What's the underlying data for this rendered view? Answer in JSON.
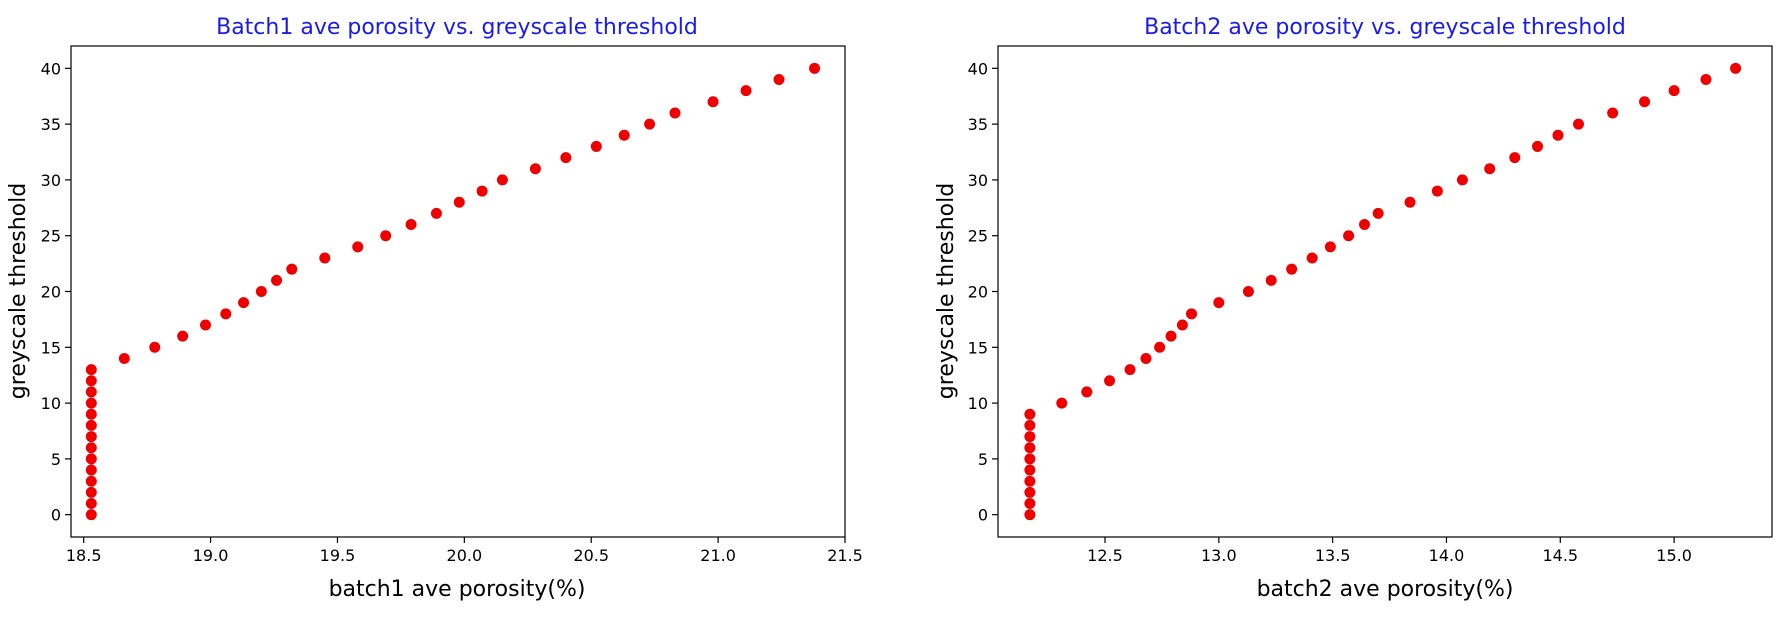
{
  "colors": {
    "title": "#1a1aee",
    "marker": "#ee0000"
  },
  "chart_data": [
    {
      "type": "scatter",
      "title": "Batch1 ave porosity vs. greyscale threshold",
      "xlabel": "batch1 ave porosity(%)",
      "ylabel": "greyscale threshold",
      "xlim": [
        18.45,
        21.5
      ],
      "ylim": [
        -2,
        42
      ],
      "xticks": [
        18.5,
        19.0,
        19.5,
        20.0,
        20.5,
        21.0,
        21.5
      ],
      "xtick_labels": [
        "18.5",
        "19.0",
        "19.5",
        "20.0",
        "20.5",
        "21.0",
        "21.5"
      ],
      "yticks": [
        0,
        5,
        10,
        15,
        20,
        25,
        30,
        35,
        40
      ],
      "ytick_labels": [
        "0",
        "5",
        "10",
        "15",
        "20",
        "25",
        "30",
        "35",
        "40"
      ],
      "grid": false,
      "points": [
        [
          18.53,
          0
        ],
        [
          18.53,
          1
        ],
        [
          18.53,
          2
        ],
        [
          18.53,
          3
        ],
        [
          18.53,
          4
        ],
        [
          18.53,
          5
        ],
        [
          18.53,
          6
        ],
        [
          18.53,
          7
        ],
        [
          18.53,
          8
        ],
        [
          18.53,
          9
        ],
        [
          18.53,
          10
        ],
        [
          18.53,
          11
        ],
        [
          18.53,
          12
        ],
        [
          18.53,
          13
        ],
        [
          18.66,
          14
        ],
        [
          18.78,
          15
        ],
        [
          18.89,
          16
        ],
        [
          18.98,
          17
        ],
        [
          19.06,
          18
        ],
        [
          19.13,
          19
        ],
        [
          19.2,
          20
        ],
        [
          19.26,
          21
        ],
        [
          19.32,
          22
        ],
        [
          19.45,
          23
        ],
        [
          19.58,
          24
        ],
        [
          19.69,
          25
        ],
        [
          19.79,
          26
        ],
        [
          19.89,
          27
        ],
        [
          19.98,
          28
        ],
        [
          20.07,
          29
        ],
        [
          20.15,
          30
        ],
        [
          20.28,
          31
        ],
        [
          20.4,
          32
        ],
        [
          20.52,
          33
        ],
        [
          20.63,
          34
        ],
        [
          20.73,
          35
        ],
        [
          20.83,
          36
        ],
        [
          20.98,
          37
        ],
        [
          21.11,
          38
        ],
        [
          21.24,
          39
        ],
        [
          21.38,
          40
        ]
      ]
    },
    {
      "type": "scatter",
      "title": "Batch2 ave porosity vs. greyscale threshold",
      "xlabel": "batch2 ave porosity(%)",
      "ylabel": "greyscale threshold",
      "xlim": [
        12.03,
        15.43
      ],
      "ylim": [
        -2,
        42
      ],
      "xticks": [
        12.5,
        13.0,
        13.5,
        14.0,
        14.5,
        15.0
      ],
      "xtick_labels": [
        "12.5",
        "13.0",
        "13.5",
        "14.0",
        "14.5",
        "15.0"
      ],
      "yticks": [
        0,
        5,
        10,
        15,
        20,
        25,
        30,
        35,
        40
      ],
      "ytick_labels": [
        "0",
        "5",
        "10",
        "15",
        "20",
        "25",
        "30",
        "35",
        "40"
      ],
      "grid": false,
      "points": [
        [
          12.17,
          0
        ],
        [
          12.17,
          1
        ],
        [
          12.17,
          2
        ],
        [
          12.17,
          3
        ],
        [
          12.17,
          4
        ],
        [
          12.17,
          5
        ],
        [
          12.17,
          6
        ],
        [
          12.17,
          7
        ],
        [
          12.17,
          8
        ],
        [
          12.17,
          9
        ],
        [
          12.31,
          10
        ],
        [
          12.42,
          11
        ],
        [
          12.52,
          12
        ],
        [
          12.61,
          13
        ],
        [
          12.68,
          14
        ],
        [
          12.74,
          15
        ],
        [
          12.79,
          16
        ],
        [
          12.84,
          17
        ],
        [
          12.88,
          18
        ],
        [
          13.0,
          19
        ],
        [
          13.13,
          20
        ],
        [
          13.23,
          21
        ],
        [
          13.32,
          22
        ],
        [
          13.41,
          23
        ],
        [
          13.49,
          24
        ],
        [
          13.57,
          25
        ],
        [
          13.64,
          26
        ],
        [
          13.7,
          27
        ],
        [
          13.84,
          28
        ],
        [
          13.96,
          29
        ],
        [
          14.07,
          30
        ],
        [
          14.19,
          31
        ],
        [
          14.3,
          32
        ],
        [
          14.4,
          33
        ],
        [
          14.49,
          34
        ],
        [
          14.58,
          35
        ],
        [
          14.73,
          36
        ],
        [
          14.87,
          37
        ],
        [
          15.0,
          38
        ],
        [
          15.14,
          39
        ],
        [
          15.27,
          40
        ]
      ]
    }
  ]
}
